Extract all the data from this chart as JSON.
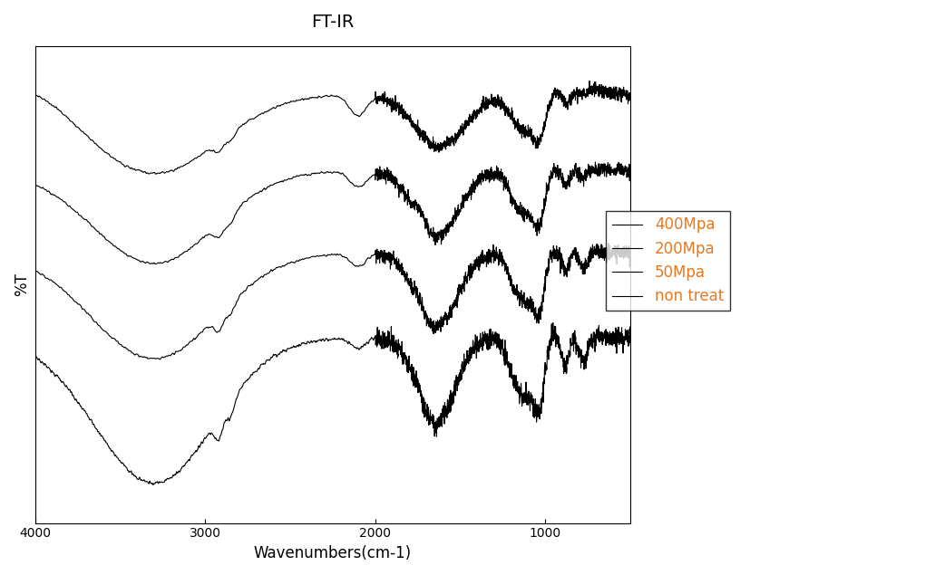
{
  "title": "FT-IR",
  "xlabel": "Wavenumbers(cm-1)",
  "ylabel": "%T",
  "xmin": 4000,
  "xmax": 500,
  "legend_labels": [
    "non treat",
    "50Mpa",
    "200Mpa",
    "400Mpa"
  ],
  "legend_text_color": "#E87820",
  "line_color": "#000000",
  "background_color": "#ffffff",
  "title_fontsize": 14,
  "axis_fontsize": 12,
  "legend_fontsize": 12,
  "offsets": [
    0.75,
    0.5,
    0.25,
    0.0
  ]
}
